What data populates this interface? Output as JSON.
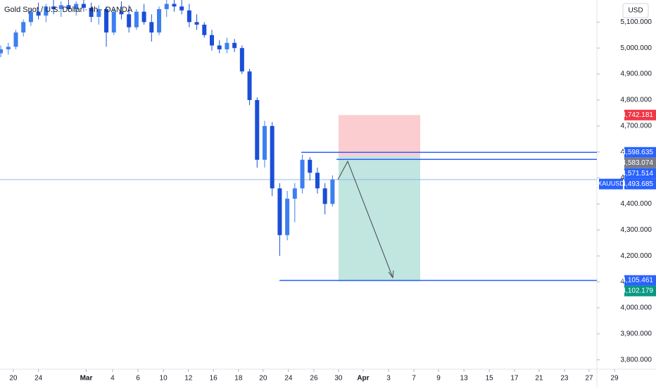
{
  "chart_data": {
    "type": "candlestick",
    "title": "Gold Spot / U.S. Dollar · 4h · OANDA",
    "currency": "USD",
    "symbol": "XAUUSD",
    "up_color": "#3d7ff0",
    "down_color": "#1a4fd6",
    "x": [
      -0.5,
      -0.2,
      0.1,
      0.4,
      0.7,
      1.0,
      1.3,
      1.6,
      1.9,
      2.2,
      2.5,
      2.8,
      3.1,
      3.4,
      3.7,
      4.0,
      4.3,
      4.6,
      4.9,
      5.2,
      5.5,
      5.8,
      6.1,
      6.4,
      6.7,
      7.0,
      7.3,
      7.6,
      7.9,
      8.2,
      8.5,
      8.8,
      9.1,
      9.4,
      9.7,
      10.0,
      10.3,
      10.6,
      10.9,
      11.2,
      11.5,
      11.8,
      12.1,
      12.4,
      12.7
    ],
    "open": [
      4980,
      4995,
      5005,
      5060,
      5100,
      5140,
      5125,
      5160,
      5150,
      5165,
      5150,
      5170,
      5155,
      5120,
      5150,
      5060,
      5140,
      5130,
      5080,
      5140,
      5100,
      5060,
      5150,
      5170,
      5160,
      5145,
      5100,
      5090,
      5050,
      5010,
      4995,
      5020,
      5000,
      4910,
      4800,
      4570,
      4700,
      4460,
      4280,
      4420,
      4460,
      4570,
      4520,
      4460,
      4400
    ],
    "high": [
      5010,
      5020,
      5070,
      5110,
      5150,
      5175,
      5170,
      5185,
      5180,
      5185,
      5180,
      5185,
      5175,
      5165,
      5160,
      5150,
      5180,
      5165,
      5150,
      5170,
      5130,
      5160,
      5185,
      5185,
      5185,
      5170,
      5130,
      5100,
      5070,
      5030,
      5040,
      5035,
      5010,
      4920,
      4810,
      4720,
      4715,
      4480,
      4450,
      4480,
      4590,
      4580,
      4540,
      4480,
      4510
    ],
    "low": [
      4965,
      4975,
      4995,
      5045,
      5085,
      5110,
      5100,
      5130,
      5120,
      5140,
      5125,
      5140,
      5100,
      5090,
      5005,
      5050,
      5110,
      5060,
      5070,
      5090,
      5025,
      5050,
      5120,
      5140,
      5130,
      5080,
      5070,
      5040,
      4990,
      4980,
      4980,
      4985,
      4900,
      4780,
      4540,
      4540,
      4430,
      4200,
      4260,
      4330,
      4440,
      4490,
      4440,
      4360,
      4390
    ],
    "close": [
      4995,
      5005,
      5060,
      5100,
      5140,
      5125,
      5160,
      5150,
      5165,
      5150,
      5170,
      5155,
      5120,
      5150,
      5060,
      5140,
      5130,
      5080,
      5140,
      5100,
      5060,
      5150,
      5170,
      5160,
      5145,
      5100,
      5090,
      5050,
      5010,
      4995,
      5020,
      5000,
      4910,
      4800,
      4570,
      4700,
      4460,
      4280,
      4420,
      4460,
      4570,
      4520,
      4460,
      4400,
      4494
    ],
    "xlim": [
      -0.53,
      23.22
    ],
    "xticks": [
      {
        "value": 0,
        "label": "20"
      },
      {
        "value": 1,
        "label": "24"
      },
      {
        "value": 2.9,
        "label": "Mar"
      },
      {
        "value": 3.95,
        "label": "4"
      },
      {
        "value": 4.96,
        "label": "6"
      },
      {
        "value": 5.97,
        "label": "10"
      },
      {
        "value": 6.97,
        "label": "12"
      },
      {
        "value": 7.96,
        "label": "16"
      },
      {
        "value": 8.96,
        "label": "18"
      },
      {
        "value": 9.94,
        "label": "20"
      },
      {
        "value": 10.95,
        "label": "24"
      },
      {
        "value": 11.96,
        "label": "26"
      },
      {
        "value": 12.94,
        "label": "30"
      },
      {
        "value": 13.92,
        "label": "Apr"
      },
      {
        "value": 14.93,
        "label": "3"
      },
      {
        "value": 15.94,
        "label": "7"
      },
      {
        "value": 16.92,
        "label": "9"
      },
      {
        "value": 17.93,
        "label": "13"
      },
      {
        "value": 18.94,
        "label": "15"
      },
      {
        "value": 19.94,
        "label": "17"
      },
      {
        "value": 20.92,
        "label": "21"
      },
      {
        "value": 21.93,
        "label": "23"
      },
      {
        "value": 22.91,
        "label": "27"
      },
      {
        "value": 23.92,
        "label": "29"
      }
    ],
    "ylim": [
      3764,
      5185
    ],
    "yticks": [
      {
        "value": 3800,
        "label": "3,800.000"
      },
      {
        "value": 3900,
        "label": "3,900.000"
      },
      {
        "value": 4000,
        "label": "4,000.000"
      },
      {
        "value": 4100,
        "label": "4,100.000"
      },
      {
        "value": 4200,
        "label": "4,200.000"
      },
      {
        "value": 4300,
        "label": "4,300.000"
      },
      {
        "value": 4400,
        "label": "4,400.000"
      },
      {
        "value": 4500,
        "label": "4,500.000"
      },
      {
        "value": 4600,
        "label": "4,600.000"
      },
      {
        "value": 4700,
        "label": "4,700.000"
      },
      {
        "value": 4800,
        "label": "4,800.000"
      },
      {
        "value": 4900,
        "label": "4,900.000"
      },
      {
        "value": 5000,
        "label": "5,000.000"
      },
      {
        "value": 5100,
        "label": "5,100.000"
      }
    ],
    "position": {
      "x_start": 12.94,
      "x_end": 16.19,
      "stop": {
        "value": 4742.181,
        "label": "4,742.181",
        "color": "#f23645"
      },
      "entry": {
        "value": 4583.074,
        "label": "4,583.074",
        "color": "#787b86"
      },
      "target": {
        "value": 4102.179,
        "label": "4,102.179",
        "color": "#089981"
      }
    },
    "lines": [
      {
        "value": 4598.635,
        "label": "4,598.635",
        "x_start": 11.46,
        "color": "#2962ff"
      },
      {
        "value": 4571.514,
        "label": "4,571.514",
        "x_start": 12.86,
        "color": "#2962ff"
      },
      {
        "value": 4105.461,
        "label": "4,105.461",
        "x_start": 10.59,
        "color": "#2962ff"
      }
    ],
    "last_price": {
      "value": 4493.685,
      "label": "4,493.685",
      "color": "#2962ff"
    }
  }
}
